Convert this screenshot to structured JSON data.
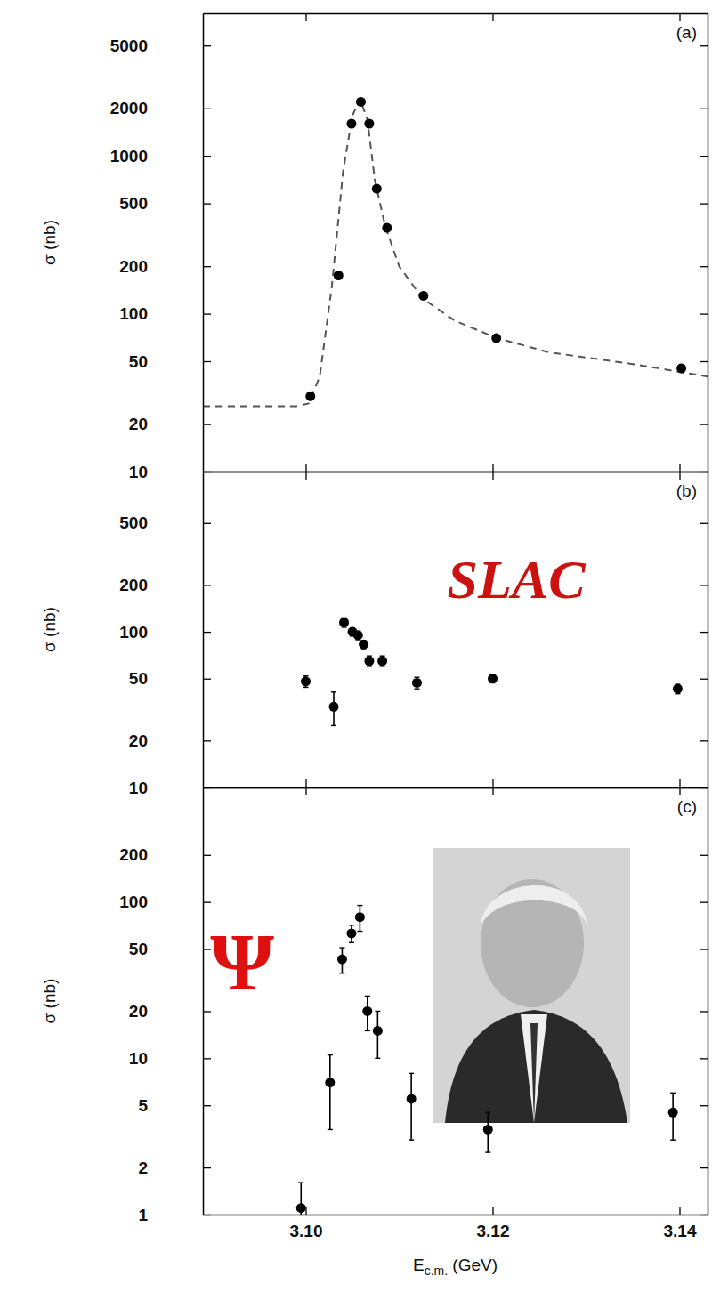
{
  "chart_data": [
    {
      "type": "scatter",
      "title": "(a)",
      "y_label": "σ (nb)",
      "log": "y",
      "tick_labels": "y",
      "xlim": [
        3.089,
        3.143
      ],
      "xticks": [
        {
          "value": 3.1,
          "label": "3.10"
        },
        {
          "value": 3.12,
          "label": "3.12"
        },
        {
          "value": 3.14,
          "label": "3.14"
        }
      ],
      "ylim": [
        10,
        8000
      ],
      "yticks": [
        10,
        20,
        50,
        100,
        200,
        500,
        1000,
        2000,
        5000
      ],
      "series": [
        {
          "type": "line",
          "line_style": "dashed",
          "color": "#555555",
          "x": [
            3.089,
            3.099,
            3.1003,
            3.1015,
            3.1028,
            3.104,
            3.105,
            3.1058,
            3.1066,
            3.1074,
            3.1085,
            3.11,
            3.1125,
            3.116,
            3.1205,
            3.126,
            3.135,
            3.143
          ],
          "values": [
            26,
            26,
            27,
            40,
            150,
            800,
            1800,
            2300,
            1700,
            700,
            360,
            200,
            125,
            90,
            70,
            57,
            48,
            40
          ]
        },
        {
          "type": "scatter",
          "marker": "circle",
          "color": "#000000",
          "x": [
            3.1005,
            3.1035,
            3.1049,
            3.1059,
            3.1068,
            3.1076,
            3.1087,
            3.1126,
            3.1204,
            3.1402
          ],
          "values": [
            30,
            175,
            1600,
            2200,
            1600,
            620,
            350,
            130,
            70,
            45
          ]
        }
      ]
    },
    {
      "type": "scatter",
      "title": "(b)",
      "y_label": "σ (nb)",
      "log": "y",
      "tick_labels": "y",
      "annotations": [
        "SLAC"
      ],
      "xlim": [
        3.089,
        3.143
      ],
      "xticks": [
        {
          "value": 3.1,
          "label": "3.10"
        },
        {
          "value": 3.12,
          "label": "3.12"
        },
        {
          "value": 3.14,
          "label": "3.14"
        }
      ],
      "ylim": [
        10,
        1070
      ],
      "yticks": [
        10,
        20,
        50,
        100,
        200,
        500
      ],
      "series": [
        {
          "type": "scatter",
          "marker": "circle",
          "color": "#000000",
          "x": [
            3.1,
            3.103,
            3.1041,
            3.105,
            3.1056,
            3.1062,
            3.1068,
            3.1082,
            3.1119,
            3.12,
            3.1398
          ],
          "values": [
            48,
            33,
            115,
            100,
            95,
            83,
            65,
            65,
            47,
            50,
            43
          ],
          "errors": [
            4,
            8,
            8,
            6,
            6,
            5,
            5,
            5,
            4,
            3,
            3
          ]
        }
      ]
    },
    {
      "type": "scatter",
      "title": "(c)",
      "y_label": "σ (nb)",
      "x_label": "Ec.m. (GeV)",
      "log": "y",
      "annotations": [
        "Ψ"
      ],
      "xlim": [
        3.089,
        3.143
      ],
      "xticks": [
        {
          "value": 3.1,
          "label": "3.10"
        },
        {
          "value": 3.12,
          "label": "3.12"
        },
        {
          "value": 3.14,
          "label": "3.14"
        }
      ],
      "ylim": [
        1,
        540
      ],
      "yticks": [
        1,
        2,
        5,
        10,
        20,
        50,
        100,
        200
      ],
      "series": [
        {
          "type": "scatter",
          "marker": "circle",
          "color": "#000000",
          "x": [
            3.0995,
            3.1026,
            3.1039,
            3.1049,
            3.1058,
            3.1066,
            3.1077,
            3.1113,
            3.1195,
            3.1393
          ],
          "values": [
            1.1,
            7,
            43,
            63,
            80,
            20,
            15,
            5.5,
            3.5,
            4.5
          ],
          "errors": [
            0.5,
            3.5,
            8,
            8,
            15,
            5,
            5,
            2.5,
            1,
            1.5
          ]
        }
      ]
    }
  ]
}
